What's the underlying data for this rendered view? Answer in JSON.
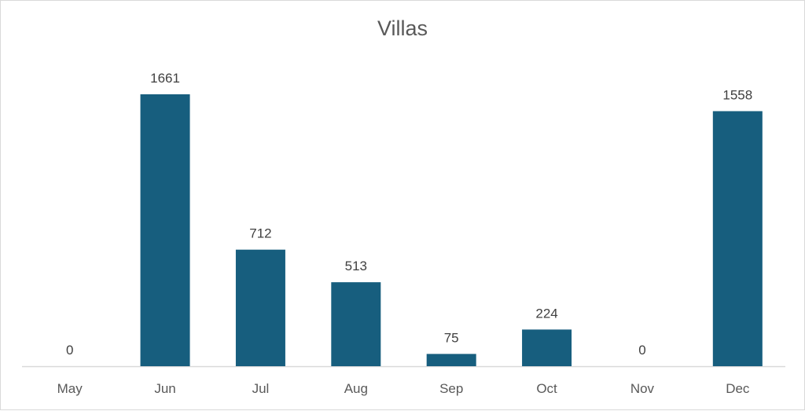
{
  "chart_data": {
    "type": "bar",
    "title": "Villas",
    "categories": [
      "May",
      "Jun",
      "Jul",
      "Aug",
      "Sep",
      "Oct",
      "Nov",
      "Dec"
    ],
    "values": [
      0,
      1661,
      712,
      513,
      75,
      224,
      0,
      1558
    ],
    "ylim": [
      0,
      1661
    ],
    "grid": false,
    "legend": "none",
    "bar_color": "#175e7e",
    "data_labels": true
  }
}
